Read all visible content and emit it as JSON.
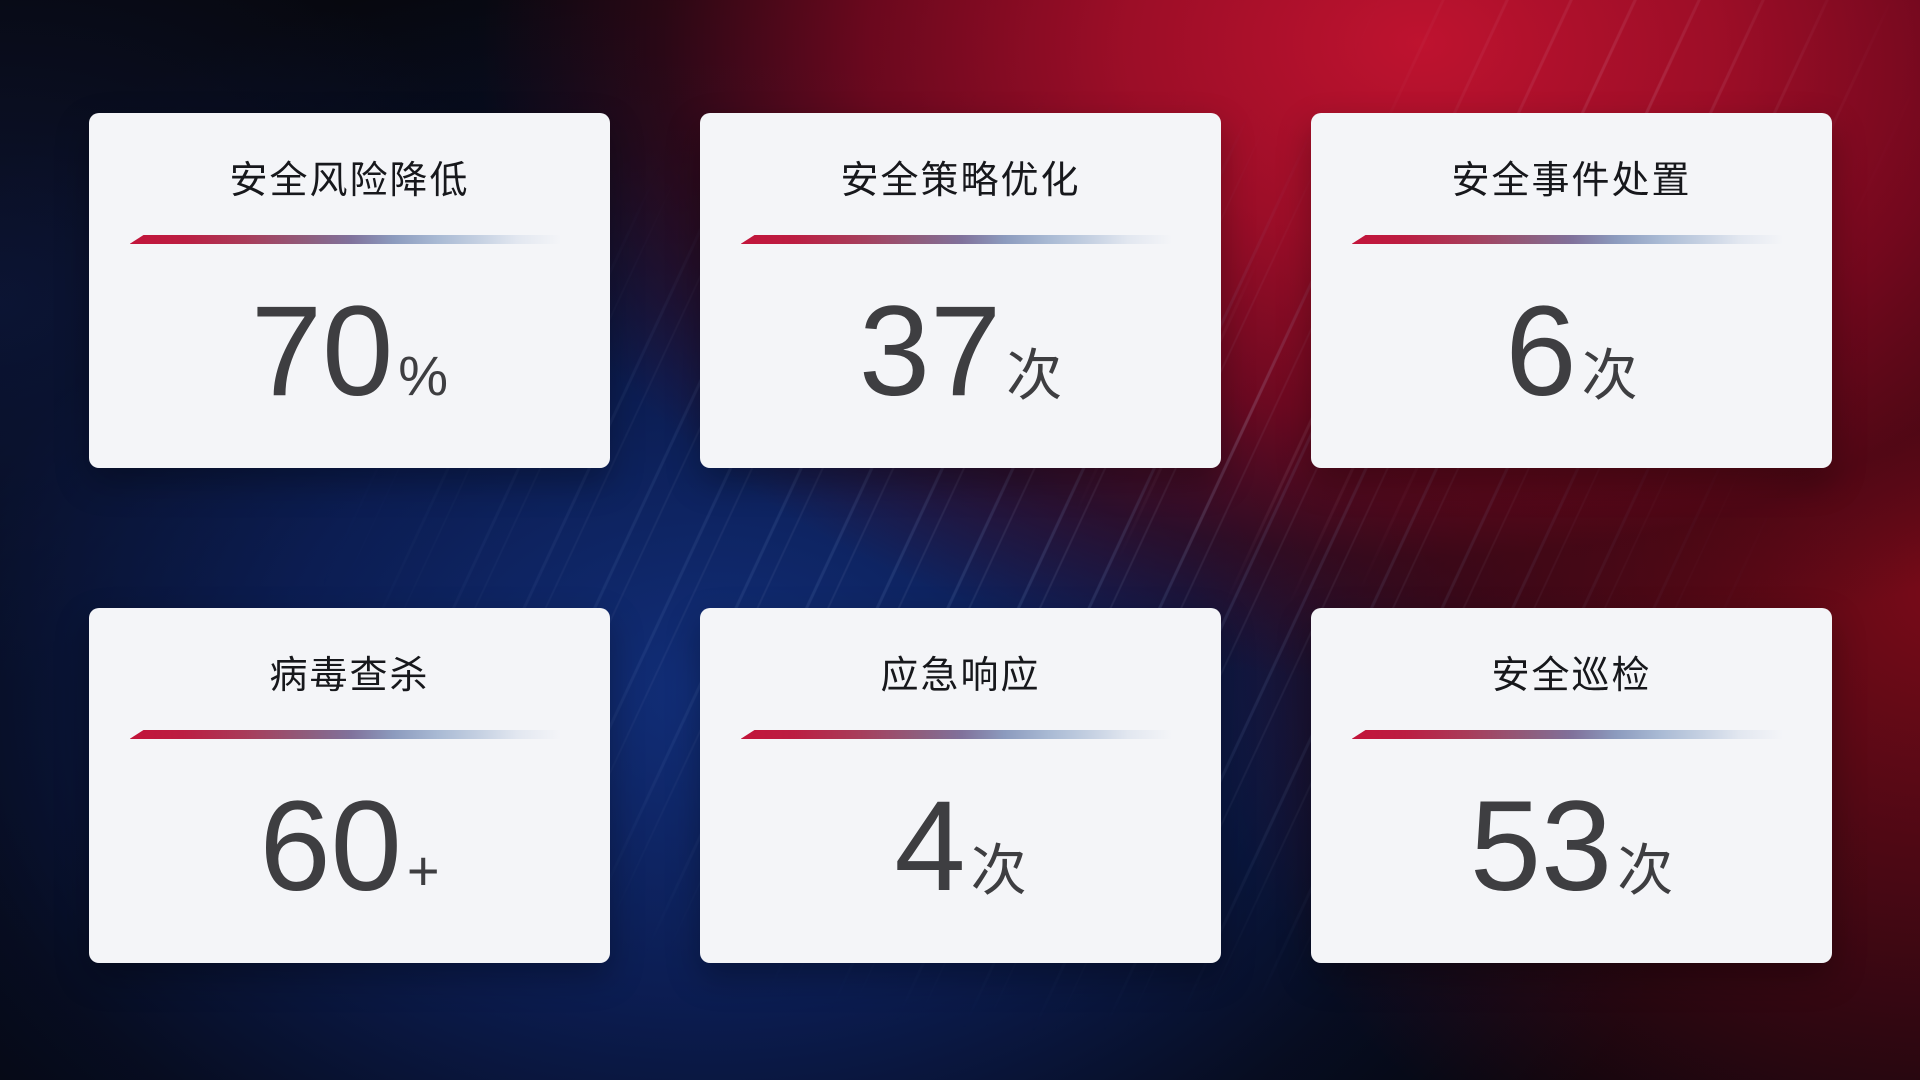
{
  "cards": [
    {
      "title": "安全风险降低",
      "value": "70",
      "unit": "%"
    },
    {
      "title": "安全策略优化",
      "value": "37",
      "unit": "次"
    },
    {
      "title": "安全事件处置",
      "value": "6",
      "unit": "次"
    },
    {
      "title": "病毒查杀",
      "value": "60",
      "unit": "+"
    },
    {
      "title": "应急响应",
      "value": "4",
      "unit": "次"
    },
    {
      "title": "安全巡检",
      "value": "53",
      "unit": "次"
    }
  ],
  "colors": {
    "card_background": "#f4f5f8",
    "title_text": "#17181c",
    "value_text": "#3e3e41",
    "divider_red": "#c2143a",
    "divider_blue": "#a9bad4",
    "background_deep_blue": "#12307e",
    "background_red_glow": "#c21330"
  }
}
